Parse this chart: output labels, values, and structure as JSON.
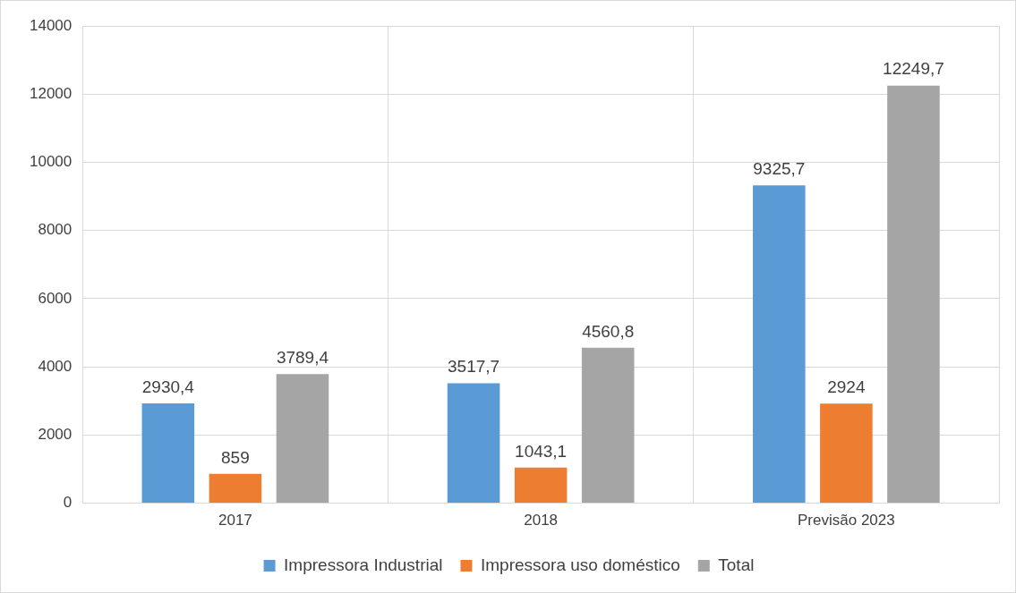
{
  "chart_data": {
    "type": "bar",
    "categories": [
      "2017",
      "2018",
      "Previsão 2023"
    ],
    "series": [
      {
        "name": "Impressora Industrial",
        "color": "#5b9bd5",
        "values": [
          2930.4,
          3517.7,
          9325.7
        ],
        "value_labels": [
          "2930,4",
          "3517,7",
          "9325,7"
        ]
      },
      {
        "name": "Impressora uso doméstico",
        "color": "#ed7d31",
        "values": [
          859,
          1043.1,
          2924
        ],
        "value_labels": [
          "859",
          "1043,1",
          "2924"
        ]
      },
      {
        "name": "Total",
        "color": "#a5a5a5",
        "values": [
          3789.4,
          4560.8,
          12249.7
        ],
        "value_labels": [
          "3789,4",
          "4560,8",
          "12249,7"
        ]
      }
    ],
    "ylim": [
      0,
      14000
    ],
    "yticks": [
      0,
      2000,
      4000,
      6000,
      8000,
      10000,
      12000,
      14000
    ],
    "grid": true,
    "legend": "bottom"
  }
}
